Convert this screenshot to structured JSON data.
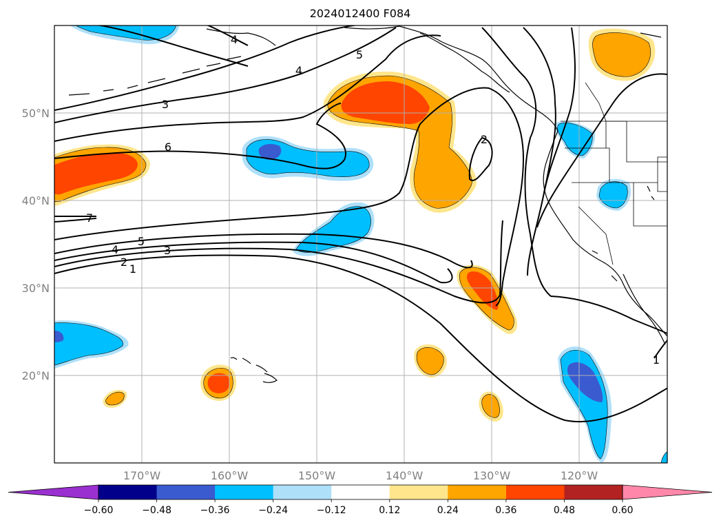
{
  "title": "2024012400 F084",
  "map": {
    "extent": {
      "lon_min": -180,
      "lon_max": -110,
      "lat_min": 10,
      "lat_max": 60
    },
    "lon_tick_labels": [
      "170°W",
      "160°W",
      "150°W",
      "140°W",
      "130°W",
      "120°W"
    ],
    "lat_tick_labels": [
      "50°N",
      "40°N",
      "30°N",
      "20°N"
    ],
    "grid": true,
    "features": [
      "coastlines",
      "us-state-borders",
      "canada-us-border"
    ]
  },
  "colorbar": {
    "tick_labels": [
      "−0.60",
      "−0.48",
      "−0.36",
      "−0.24",
      "−0.12",
      "0.12",
      "0.24",
      "0.36",
      "0.48",
      "0.60"
    ],
    "colors": [
      "#9b30d0",
      "#00008b",
      "#3a5bd0",
      "#00bfff",
      "#aee0fa",
      "#ffffff",
      "#ffe68c",
      "#ffa500",
      "#ff4500",
      "#b22222",
      "#ff88aa"
    ],
    "extend": "both",
    "orientation": "horizontal"
  },
  "contour_labels": [
    {
      "text": "4",
      "lon": -168.8,
      "lat": 59.1
    },
    {
      "text": "5",
      "lon": -145.3,
      "lat": 56.9
    },
    {
      "text": "4",
      "lon": -158.1,
      "lat": 54.8
    },
    {
      "text": "3",
      "lon": -167.4,
      "lat": 50.9
    },
    {
      "text": "6",
      "lon": -167.0,
      "lat": 46.0
    },
    {
      "text": "2",
      "lon": -130.2,
      "lat": 47.0
    },
    {
      "text": "7",
      "lon": -176.0,
      "lat": 37.9
    },
    {
      "text": "5",
      "lon": -173.3,
      "lat": 35.2
    },
    {
      "text": "4",
      "lon": -175.3,
      "lat": 34.2
    },
    {
      "text": "3",
      "lon": -163.1,
      "lat": 34.2
    },
    {
      "text": "2",
      "lon": -174.2,
      "lat": 33.1
    },
    {
      "text": "1",
      "lon": -173.4,
      "lat": 32.3
    },
    {
      "text": "1",
      "lon": -110.7,
      "lat": 22.0
    }
  ],
  "icons": [
    "colorbar-left-arrow",
    "colorbar-right-arrow"
  ]
}
